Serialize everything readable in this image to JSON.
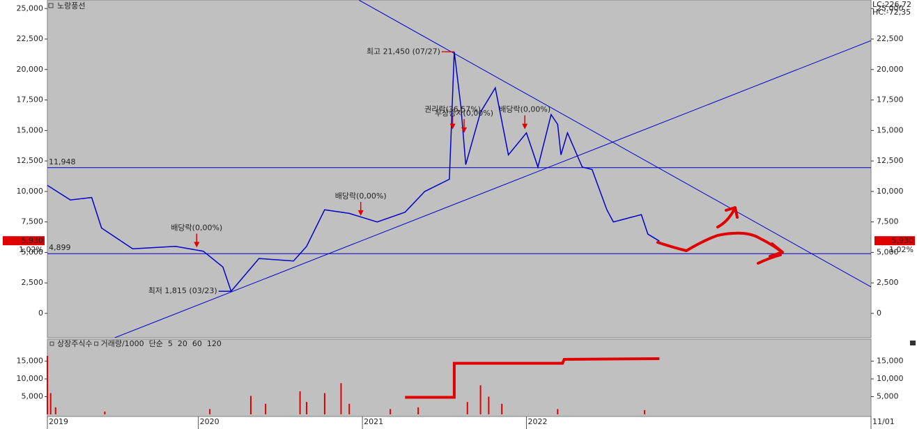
{
  "chart_data": [
    {
      "type": "line",
      "title": "노랑풍선",
      "corner_labels": [
        {
          "text": "LC:226,72",
          "color": "#cc0000"
        },
        {
          "text": "HC:-72,35",
          "color": "#000099"
        }
      ],
      "x": [
        2019.08,
        2019.22,
        2019.35,
        2019.41,
        2019.6,
        2019.86,
        2020.03,
        2020.15,
        2020.2,
        2020.37,
        2020.58,
        2020.66,
        2020.77,
        2020.92,
        2021.09,
        2021.26,
        2021.38,
        2021.53,
        2021.56,
        2021.6,
        2021.63,
        2021.72,
        2021.81,
        2021.89,
        2022.0,
        2022.07,
        2022.15,
        2022.19,
        2022.21,
        2022.25,
        2022.34,
        2022.4,
        2022.49,
        2022.53,
        2022.7,
        2022.74,
        2022.81
      ],
      "values": [
        10500,
        9300,
        9500,
        7000,
        5300,
        5500,
        5100,
        3800,
        1815,
        4500,
        4300,
        5500,
        8500,
        8200,
        7500,
        8300,
        10000,
        11000,
        21450,
        17000,
        12200,
        16500,
        18500,
        13000,
        14800,
        12000,
        16300,
        15500,
        13000,
        14800,
        12000,
        11800,
        8500,
        7500,
        8100,
        6500,
        5930
      ],
      "color": "#0000cc",
      "xlim": [
        2019.08,
        2024.1
      ],
      "ylim": [
        -2000,
        25700
      ],
      "yticks": [
        0,
        {
          "value": 2500,
          "label": "2,500"
        },
        {
          "value": 5000,
          "label": "5,000"
        },
        {
          "value": 7500,
          "label": "7,500"
        },
        {
          "value": 10000,
          "label": "10,000"
        },
        {
          "value": 12500,
          "label": "12,500"
        },
        {
          "value": 15000,
          "label": "15,000"
        },
        {
          "value": 17500,
          "label": "17,500"
        },
        {
          "value": 20000,
          "label": "20,000"
        },
        {
          "value": 22500,
          "label": "22,500"
        },
        {
          "value": 25000,
          "label": "25,000"
        }
      ],
      "grid": false,
      "hlines": [
        {
          "value": 11948,
          "label": "11,948"
        },
        {
          "value": 4899,
          "label": "4,899"
        }
      ],
      "trend_lines": [
        [
          [
            2020.98,
            25685
          ],
          [
            2024.1,
            2170
          ]
        ],
        [
          [
            2019.49,
            -2000
          ],
          [
            2024.1,
            22370
          ]
        ]
      ],
      "annotations": [
        {
          "text": "최고 21,450 (07/27)",
          "x": 2021.56,
          "y": 21450,
          "color": "#e00000",
          "side": "left"
        },
        {
          "text": "최저 1,815 (03/23)",
          "x": 2020.2,
          "y": 1815,
          "color": "#0000cc",
          "side": "left"
        },
        {
          "text": "배당락(0,00%)",
          "x": 2019.99,
          "y": 5400,
          "color": "#e00000",
          "side": "above"
        },
        {
          "text": "배당락(0,00%)",
          "x": 2020.99,
          "y": 8000,
          "color": "#e00000",
          "side": "above"
        },
        {
          "text": "권리락(36,57%)",
          "x": 2021.55,
          "y": 15100,
          "color": "#e00000",
          "side": "above"
        },
        {
          "text": "무상증자(0,00%)",
          "x": 2021.62,
          "y": 14800,
          "color": "#e00000",
          "side": "above"
        },
        {
          "text": "배당락(0,00%)",
          "x": 2021.99,
          "y": 15100,
          "color": "#e00000",
          "side": "above"
        }
      ],
      "last_price": {
        "value": 5930,
        "label": "5,930"
      },
      "change_label": "1,02%"
    },
    {
      "type": "bar",
      "x": [
        2019.08,
        2019.1,
        2019.13,
        2019.43,
        2020.07,
        2020.32,
        2020.41,
        2020.62,
        2020.66,
        2020.77,
        2020.87,
        2020.92,
        2021.17,
        2021.34,
        2021.64,
        2021.72,
        2021.77,
        2021.85,
        2022.19,
        2022.72
      ],
      "values": [
        16500,
        6000,
        2000,
        800,
        1500,
        5200,
        3000,
        6500,
        3500,
        6000,
        8800,
        3000,
        1500,
        2000,
        3500,
        8200,
        5000,
        3000,
        1500,
        1200
      ],
      "color": "#e00000",
      "series": [
        {
          "name": "상장주식수",
          "color": "#e00000",
          "x": [
            2021.26,
            2021.56,
            2021.56,
            2022.22,
            2022.23,
            2022.81
          ],
          "values": [
            4800,
            4800,
            14400,
            14400,
            15500,
            15700
          ]
        }
      ],
      "legend": [
        {
          "name": "거래량/1000",
          "color": "#008080"
        },
        {
          "name": "단순",
          "color": "#d000d0"
        },
        {
          "name": "5",
          "color": "#d000d0"
        },
        {
          "name": "20",
          "color": "#e0a000"
        },
        {
          "name": "60",
          "color": "#00a000"
        },
        {
          "name": "120",
          "color": "#808080"
        }
      ],
      "xlim": [
        2019.08,
        2024.1
      ],
      "ylim": [
        0,
        21200
      ],
      "yticks": [
        {
          "value": 5000,
          "label": "5,000"
        },
        {
          "value": 10000,
          "label": "10,000"
        },
        {
          "value": 15000,
          "label": "15,000"
        }
      ],
      "xticks": [
        {
          "value": 2019.08,
          "label": "2019"
        },
        {
          "value": 2020,
          "label": "2020"
        },
        {
          "value": 2021,
          "label": "2021"
        },
        {
          "value": 2022,
          "label": "2022"
        },
        {
          "value": 2024.1,
          "label": "11/01"
        }
      ]
    }
  ]
}
